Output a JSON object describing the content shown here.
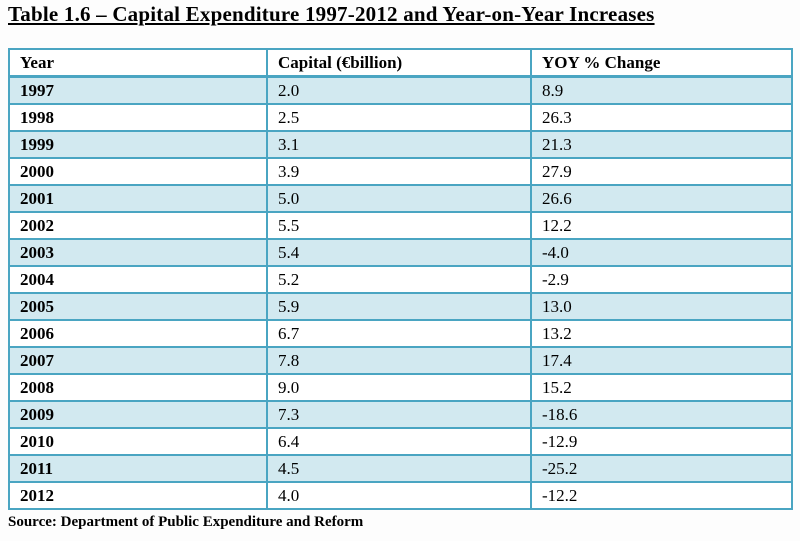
{
  "title": "Table 1.6 – Capital Expenditure 1997-2012 and Year-on-Year Increases",
  "source": "Source: Department of Public Expenditure and Reform",
  "colors": {
    "table_border": "#4AA5C2",
    "band_fill": "#D2E9F0",
    "header_fill": "#FFFFFF",
    "text": "#000000"
  },
  "table": {
    "columns": [
      "Year",
      "Capital (€billion)",
      "YOY % Change"
    ],
    "rows": [
      [
        "1997",
        "2.0",
        "8.9"
      ],
      [
        "1998",
        "2.5",
        "26.3"
      ],
      [
        "1999",
        "3.1",
        "21.3"
      ],
      [
        "2000",
        "3.9",
        "27.9"
      ],
      [
        "2001",
        "5.0",
        "26.6"
      ],
      [
        "2002",
        "5.5",
        "12.2"
      ],
      [
        "2003",
        "5.4",
        "-4.0"
      ],
      [
        "2004",
        "5.2",
        "-2.9"
      ],
      [
        "2005",
        "5.9",
        "13.0"
      ],
      [
        "2006",
        "6.7",
        "13.2"
      ],
      [
        "2007",
        "7.8",
        "17.4"
      ],
      [
        "2008",
        "9.0",
        "15.2"
      ],
      [
        "2009",
        "7.3",
        "-18.6"
      ],
      [
        "2010",
        "6.4",
        "-12.9"
      ],
      [
        "2011",
        "4.5",
        "-25.2"
      ],
      [
        "2012",
        "4.0",
        "-12.2"
      ]
    ]
  }
}
